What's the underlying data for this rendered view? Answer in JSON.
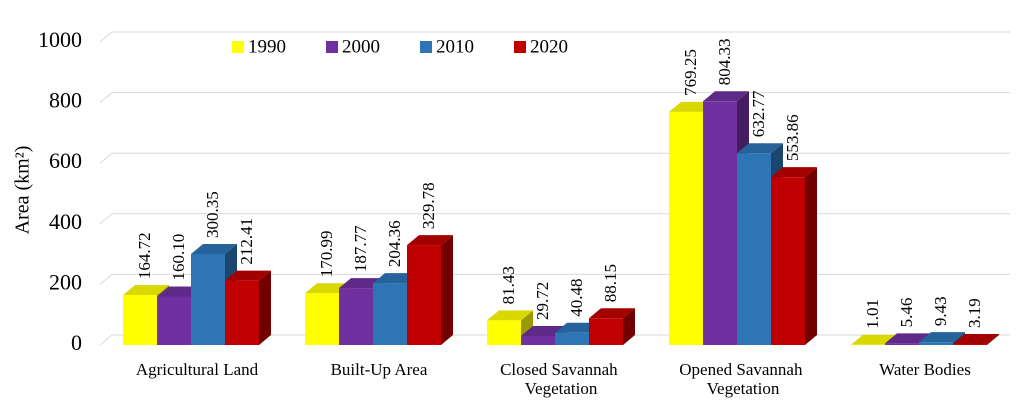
{
  "chart_data": {
    "type": "bar3d",
    "y_label": "Area (km²)",
    "categories": [
      "Agricultural Land",
      "Built-Up Area",
      "Closed Savannah Vegetation",
      "Opened Savannah Vegetation",
      "Water Bodies"
    ],
    "series": [
      {
        "name": "1990",
        "color": "#ffff00",
        "values": [
          164.72,
          170.99,
          81.43,
          769.25,
          1.01
        ],
        "value_labels": [
          "164.72",
          "170.99",
          "81.43",
          "769.25",
          "1.01"
        ]
      },
      {
        "name": "2000",
        "color": "#7030a0",
        "values": [
          160.1,
          187.77,
          29.72,
          804.33,
          5.46
        ],
        "value_labels": [
          "160.10",
          "187.77",
          "29.72",
          "804.33",
          "5.46"
        ]
      },
      {
        "name": "2010",
        "color": "#2e75b6",
        "values": [
          300.35,
          204.36,
          40.48,
          632.77,
          9.43
        ],
        "value_labels": [
          "300.35",
          "204.36",
          "40.48",
          "632.77",
          "9.43"
        ]
      },
      {
        "name": "2020",
        "color": "#c00000",
        "values": [
          212.41,
          329.78,
          88.15,
          553.86,
          3.19
        ],
        "value_labels": [
          "212.41",
          "329.78",
          "88.15",
          "553.86",
          "3.19"
        ]
      }
    ],
    "ylim": [
      0,
      1000
    ],
    "yticks": [
      0,
      200,
      400,
      600,
      800,
      1000
    ],
    "grid": true,
    "legend": "top"
  }
}
